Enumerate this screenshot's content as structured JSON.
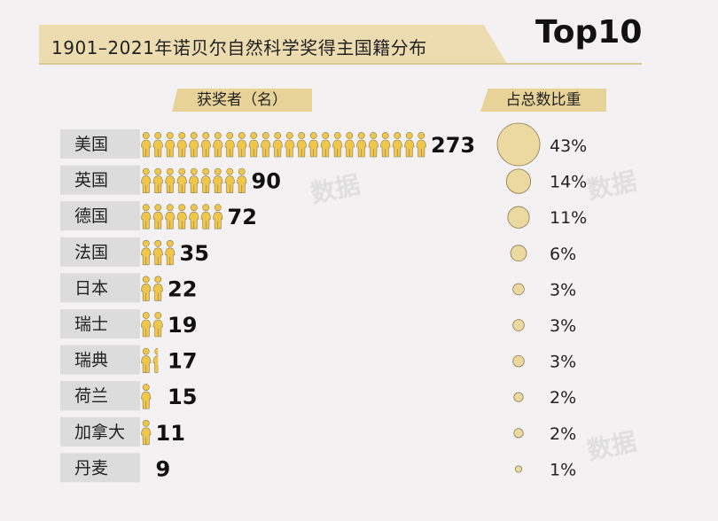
{
  "header": {
    "title": "1901–2021年诺贝尔自然科学奖得主国籍分布",
    "badge": "Top10"
  },
  "columns": {
    "count_header": "获奖者（名）",
    "share_header": "占总数比重"
  },
  "watermark": "数据",
  "colors": {
    "icon": "#f0c74a",
    "icon_stroke": "#8a7a55",
    "bubble": "#ecd9a0",
    "bubble_stroke": "#8a7a55",
    "row_band": "#dcdcdc",
    "accent_band": "#e7d398"
  },
  "chart_data": {
    "type": "bar",
    "title": "1901–2021年诺贝尔自然科学奖得主国籍分布",
    "categories": [
      "美国",
      "英国",
      "德国",
      "法国",
      "日本",
      "瑞士",
      "瑞典",
      "荷兰",
      "加拿大",
      "丹麦"
    ],
    "series": [
      {
        "name": "获奖者（名）",
        "values": [
          273,
          90,
          72,
          35,
          22,
          19,
          17,
          15,
          11,
          9
        ]
      },
      {
        "name": "占总数比重",
        "values": [
          "43%",
          "14%",
          "11%",
          "6%",
          "3%",
          "3%",
          "3%",
          "2%",
          "2%",
          "1%"
        ],
        "numeric": [
          43,
          14,
          11,
          6,
          3,
          3,
          3,
          2,
          2,
          1
        ]
      }
    ],
    "icons_per_row": [
      24,
      9,
      7,
      3,
      2,
      2,
      1.5,
      1.2,
      1,
      0.7
    ]
  }
}
